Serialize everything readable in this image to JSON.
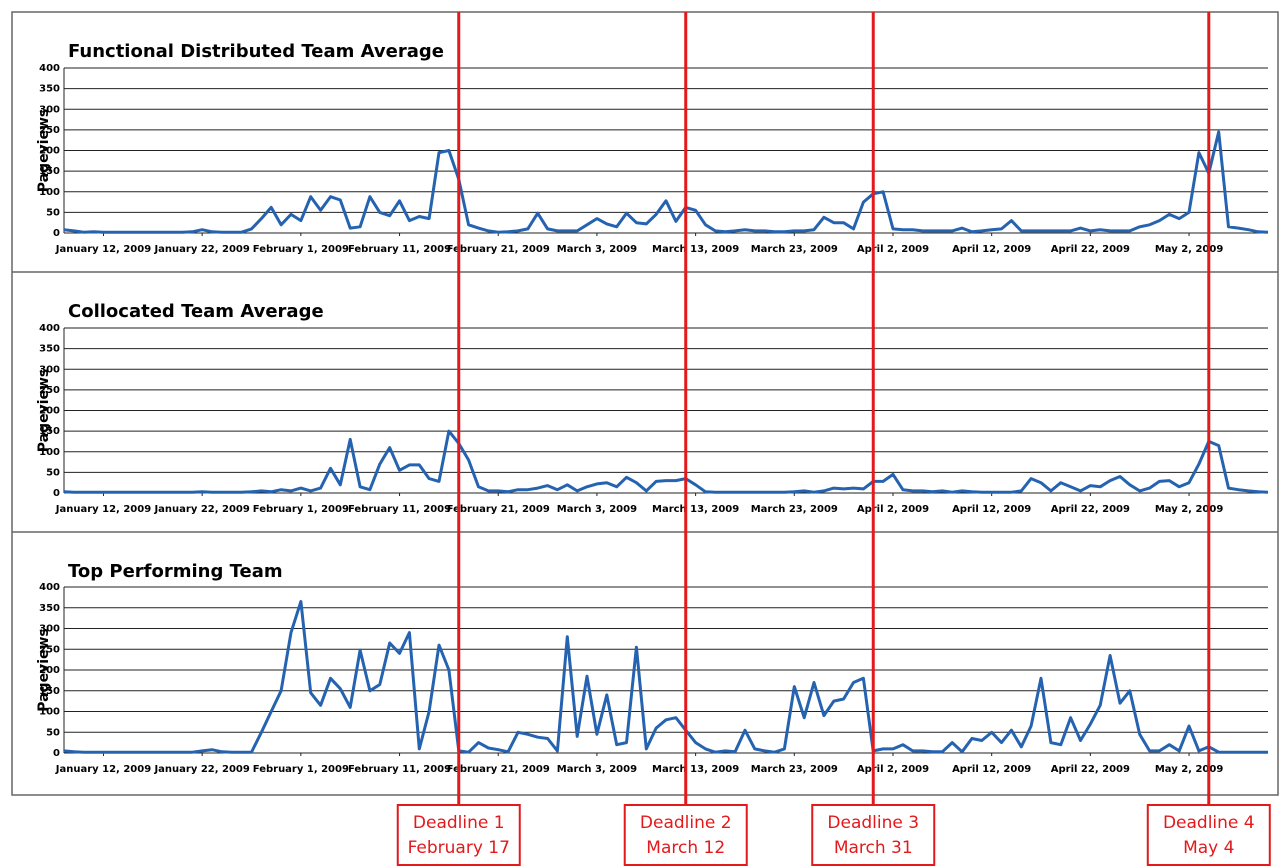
{
  "chart_data": [
    {
      "type": "line",
      "title": "Functional Distributed Team Average",
      "y_label": "Pageviews",
      "color": "#2563b0",
      "grid": true,
      "ylim": [
        0,
        400
      ],
      "yticks": [
        0,
        50,
        100,
        150,
        200,
        250,
        300,
        350,
        400
      ],
      "xticks": [
        {
          "value": "2009-01-12",
          "label": "January 12, 2009"
        },
        {
          "value": "2009-01-22",
          "label": "January 22, 2009"
        },
        {
          "value": "2009-02-01",
          "label": "February 1, 2009"
        },
        {
          "value": "2009-02-11",
          "label": "February 11, 2009"
        },
        {
          "value": "2009-02-21",
          "label": "February 21, 2009"
        },
        {
          "value": "2009-03-03",
          "label": "March 3, 2009"
        },
        {
          "value": "2009-03-13",
          "label": "March 13, 2009"
        },
        {
          "value": "2009-03-23",
          "label": "March 23, 2009"
        },
        {
          "value": "2009-04-02",
          "label": "April 2, 2009"
        },
        {
          "value": "2009-04-12",
          "label": "April 12, 2009"
        },
        {
          "value": "2009-04-22",
          "label": "April 22, 2009"
        },
        {
          "value": "2009-05-02",
          "label": "May 2, 2009"
        }
      ],
      "x": [
        "2009-01-08",
        "2009-01-09",
        "2009-01-10",
        "2009-01-11",
        "2009-01-12",
        "2009-01-13",
        "2009-01-14",
        "2009-01-15",
        "2009-01-16",
        "2009-01-17",
        "2009-01-18",
        "2009-01-19",
        "2009-01-20",
        "2009-01-21",
        "2009-01-22",
        "2009-01-23",
        "2009-01-24",
        "2009-01-25",
        "2009-01-26",
        "2009-01-27",
        "2009-01-28",
        "2009-01-29",
        "2009-01-30",
        "2009-01-31",
        "2009-02-01",
        "2009-02-02",
        "2009-02-03",
        "2009-02-04",
        "2009-02-05",
        "2009-02-06",
        "2009-02-07",
        "2009-02-08",
        "2009-02-09",
        "2009-02-10",
        "2009-02-11",
        "2009-02-12",
        "2009-02-13",
        "2009-02-14",
        "2009-02-15",
        "2009-02-16",
        "2009-02-17",
        "2009-02-18",
        "2009-02-19",
        "2009-02-20",
        "2009-02-21",
        "2009-02-22",
        "2009-02-23",
        "2009-02-24",
        "2009-02-25",
        "2009-02-26",
        "2009-02-27",
        "2009-02-28",
        "2009-03-01",
        "2009-03-02",
        "2009-03-03",
        "2009-03-04",
        "2009-03-05",
        "2009-03-06",
        "2009-03-07",
        "2009-03-08",
        "2009-03-09",
        "2009-03-10",
        "2009-03-11",
        "2009-03-12",
        "2009-03-13",
        "2009-03-14",
        "2009-03-15",
        "2009-03-16",
        "2009-03-17",
        "2009-03-18",
        "2009-03-19",
        "2009-03-20",
        "2009-03-21",
        "2009-03-22",
        "2009-03-23",
        "2009-03-24",
        "2009-03-25",
        "2009-03-26",
        "2009-03-27",
        "2009-03-28",
        "2009-03-29",
        "2009-03-30",
        "2009-03-31",
        "2009-04-01",
        "2009-04-02",
        "2009-04-03",
        "2009-04-04",
        "2009-04-05",
        "2009-04-06",
        "2009-04-07",
        "2009-04-08",
        "2009-04-09",
        "2009-04-10",
        "2009-04-11",
        "2009-04-12",
        "2009-04-13",
        "2009-04-14",
        "2009-04-15",
        "2009-04-16",
        "2009-04-17",
        "2009-04-18",
        "2009-04-19",
        "2009-04-20",
        "2009-04-21",
        "2009-04-22",
        "2009-04-23",
        "2009-04-24",
        "2009-04-25",
        "2009-04-26",
        "2009-04-27",
        "2009-04-28",
        "2009-04-29",
        "2009-04-30",
        "2009-05-01",
        "2009-05-02",
        "2009-05-03",
        "2009-05-04",
        "2009-05-05",
        "2009-05-06",
        "2009-05-07",
        "2009-05-08",
        "2009-05-09",
        "2009-05-10"
      ],
      "values": [
        8,
        5,
        2,
        3,
        2,
        2,
        2,
        2,
        2,
        2,
        2,
        2,
        2,
        3,
        8,
        3,
        2,
        2,
        2,
        10,
        35,
        62,
        20,
        45,
        30,
        88,
        55,
        88,
        80,
        12,
        15,
        88,
        50,
        42,
        78,
        30,
        40,
        35,
        195,
        200,
        130,
        20,
        12,
        5,
        2,
        3,
        5,
        10,
        48,
        10,
        5,
        5,
        5,
        20,
        35,
        22,
        15,
        48,
        25,
        22,
        45,
        78,
        28,
        62,
        55,
        20,
        5,
        3,
        5,
        8,
        5,
        5,
        3,
        3,
        5,
        5,
        8,
        38,
        25,
        25,
        10,
        75,
        95,
        100,
        10,
        8,
        8,
        5,
        5,
        5,
        5,
        12,
        3,
        5,
        8,
        10,
        30,
        5,
        5,
        5,
        5,
        5,
        5,
        12,
        5,
        8,
        5,
        5,
        5,
        15,
        20,
        30,
        45,
        35,
        50,
        195,
        145,
        245,
        15,
        12,
        8,
        3,
        2
      ]
    },
    {
      "type": "line",
      "title": "Collocated Team Average",
      "y_label": "Pageviews",
      "color": "#2563b0",
      "grid": true,
      "ylim": [
        0,
        400
      ],
      "yticks": [
        0,
        50,
        100,
        150,
        200,
        250,
        300,
        350,
        400
      ],
      "xticks": [
        {
          "value": "2009-01-12",
          "label": "January 12, 2009"
        },
        {
          "value": "2009-01-22",
          "label": "January 22, 2009"
        },
        {
          "value": "2009-02-01",
          "label": "February 1, 2009"
        },
        {
          "value": "2009-02-11",
          "label": "February 11, 2009"
        },
        {
          "value": "2009-02-21",
          "label": "February 21, 2009"
        },
        {
          "value": "2009-03-03",
          "label": "March 3, 2009"
        },
        {
          "value": "2009-03-13",
          "label": "March 13, 2009"
        },
        {
          "value": "2009-03-23",
          "label": "March 23, 2009"
        },
        {
          "value": "2009-04-02",
          "label": "April 2, 2009"
        },
        {
          "value": "2009-04-12",
          "label": "April 12, 2009"
        },
        {
          "value": "2009-04-22",
          "label": "April 22, 2009"
        },
        {
          "value": "2009-05-02",
          "label": "May 2, 2009"
        }
      ],
      "x": [
        "2009-01-08",
        "2009-01-09",
        "2009-01-10",
        "2009-01-11",
        "2009-01-12",
        "2009-01-13",
        "2009-01-14",
        "2009-01-15",
        "2009-01-16",
        "2009-01-17",
        "2009-01-18",
        "2009-01-19",
        "2009-01-20",
        "2009-01-21",
        "2009-01-22",
        "2009-01-23",
        "2009-01-24",
        "2009-01-25",
        "2009-01-26",
        "2009-01-27",
        "2009-01-28",
        "2009-01-29",
        "2009-01-30",
        "2009-01-31",
        "2009-02-01",
        "2009-02-02",
        "2009-02-03",
        "2009-02-04",
        "2009-02-05",
        "2009-02-06",
        "2009-02-07",
        "2009-02-08",
        "2009-02-09",
        "2009-02-10",
        "2009-02-11",
        "2009-02-12",
        "2009-02-13",
        "2009-02-14",
        "2009-02-15",
        "2009-02-16",
        "2009-02-17",
        "2009-02-18",
        "2009-02-19",
        "2009-02-20",
        "2009-02-21",
        "2009-02-22",
        "2009-02-23",
        "2009-02-24",
        "2009-02-25",
        "2009-02-26",
        "2009-02-27",
        "2009-02-28",
        "2009-03-01",
        "2009-03-02",
        "2009-03-03",
        "2009-03-04",
        "2009-03-05",
        "2009-03-06",
        "2009-03-07",
        "2009-03-08",
        "2009-03-09",
        "2009-03-10",
        "2009-03-11",
        "2009-03-12",
        "2009-03-13",
        "2009-03-14",
        "2009-03-15",
        "2009-03-16",
        "2009-03-17",
        "2009-03-18",
        "2009-03-19",
        "2009-03-20",
        "2009-03-21",
        "2009-03-22",
        "2009-03-23",
        "2009-03-24",
        "2009-03-25",
        "2009-03-26",
        "2009-03-27",
        "2009-03-28",
        "2009-03-29",
        "2009-03-30",
        "2009-03-31",
        "2009-04-01",
        "2009-04-02",
        "2009-04-03",
        "2009-04-04",
        "2009-04-05",
        "2009-04-06",
        "2009-04-07",
        "2009-04-08",
        "2009-04-09",
        "2009-04-10",
        "2009-04-11",
        "2009-04-12",
        "2009-04-13",
        "2009-04-14",
        "2009-04-15",
        "2009-04-16",
        "2009-04-17",
        "2009-04-18",
        "2009-04-19",
        "2009-04-20",
        "2009-04-21",
        "2009-04-22",
        "2009-04-23",
        "2009-04-24",
        "2009-04-25",
        "2009-04-26",
        "2009-04-27",
        "2009-04-28",
        "2009-04-29",
        "2009-04-30",
        "2009-05-01",
        "2009-05-02",
        "2009-05-03",
        "2009-05-04",
        "2009-05-05",
        "2009-05-06",
        "2009-05-07",
        "2009-05-08",
        "2009-05-09",
        "2009-05-10"
      ],
      "values": [
        3,
        2,
        2,
        2,
        2,
        2,
        2,
        2,
        2,
        2,
        2,
        2,
        2,
        2,
        3,
        2,
        2,
        2,
        2,
        3,
        5,
        3,
        8,
        5,
        12,
        5,
        12,
        60,
        20,
        130,
        15,
        8,
        70,
        110,
        55,
        68,
        68,
        35,
        28,
        150,
        120,
        80,
        15,
        5,
        5,
        3,
        8,
        8,
        12,
        18,
        8,
        20,
        5,
        15,
        22,
        25,
        15,
        38,
        25,
        5,
        28,
        30,
        30,
        35,
        20,
        3,
        2,
        2,
        2,
        2,
        2,
        2,
        2,
        2,
        3,
        5,
        2,
        5,
        12,
        10,
        12,
        10,
        28,
        28,
        45,
        8,
        5,
        5,
        3,
        5,
        2,
        5,
        3,
        2,
        2,
        2,
        2,
        5,
        35,
        25,
        5,
        25,
        15,
        5,
        18,
        15,
        30,
        40,
        20,
        5,
        12,
        28,
        30,
        15,
        25,
        70,
        125,
        115,
        12,
        8,
        5,
        3,
        2
      ]
    },
    {
      "type": "line",
      "title": "Top Performing Team",
      "y_label": "Pageviews",
      "color": "#2563b0",
      "grid": true,
      "ylim": [
        0,
        400
      ],
      "yticks": [
        0,
        50,
        100,
        150,
        200,
        250,
        300,
        350,
        400
      ],
      "xticks": [
        {
          "value": "2009-01-12",
          "label": "January 12, 2009"
        },
        {
          "value": "2009-01-22",
          "label": "January 22, 2009"
        },
        {
          "value": "2009-02-01",
          "label": "February 1, 2009"
        },
        {
          "value": "2009-02-11",
          "label": "February 11, 2009"
        },
        {
          "value": "2009-02-21",
          "label": "February 21, 2009"
        },
        {
          "value": "2009-03-03",
          "label": "March 3, 2009"
        },
        {
          "value": "2009-03-13",
          "label": "March 13, 2009"
        },
        {
          "value": "2009-03-23",
          "label": "March 23, 2009"
        },
        {
          "value": "2009-04-02",
          "label": "April 2, 2009"
        },
        {
          "value": "2009-04-12",
          "label": "April 12, 2009"
        },
        {
          "value": "2009-04-22",
          "label": "April 22, 2009"
        },
        {
          "value": "2009-05-02",
          "label": "May 2, 2009"
        }
      ],
      "x": [
        "2009-01-08",
        "2009-01-09",
        "2009-01-10",
        "2009-01-11",
        "2009-01-12",
        "2009-01-13",
        "2009-01-14",
        "2009-01-15",
        "2009-01-16",
        "2009-01-17",
        "2009-01-18",
        "2009-01-19",
        "2009-01-20",
        "2009-01-21",
        "2009-01-22",
        "2009-01-23",
        "2009-01-24",
        "2009-01-25",
        "2009-01-26",
        "2009-01-27",
        "2009-01-28",
        "2009-01-29",
        "2009-01-30",
        "2009-01-31",
        "2009-02-01",
        "2009-02-02",
        "2009-02-03",
        "2009-02-04",
        "2009-02-05",
        "2009-02-06",
        "2009-02-07",
        "2009-02-08",
        "2009-02-09",
        "2009-02-10",
        "2009-02-11",
        "2009-02-12",
        "2009-02-13",
        "2009-02-14",
        "2009-02-15",
        "2009-02-16",
        "2009-02-17",
        "2009-02-18",
        "2009-02-19",
        "2009-02-20",
        "2009-02-21",
        "2009-02-22",
        "2009-02-23",
        "2009-02-24",
        "2009-02-25",
        "2009-02-26",
        "2009-02-27",
        "2009-02-28",
        "2009-03-01",
        "2009-03-02",
        "2009-03-03",
        "2009-03-04",
        "2009-03-05",
        "2009-03-06",
        "2009-03-07",
        "2009-03-08",
        "2009-03-09",
        "2009-03-10",
        "2009-03-11",
        "2009-03-12",
        "2009-03-13",
        "2009-03-14",
        "2009-03-15",
        "2009-03-16",
        "2009-03-17",
        "2009-03-18",
        "2009-03-19",
        "2009-03-20",
        "2009-03-21",
        "2009-03-22",
        "2009-03-23",
        "2009-03-24",
        "2009-03-25",
        "2009-03-26",
        "2009-03-27",
        "2009-03-28",
        "2009-03-29",
        "2009-03-30",
        "2009-03-31",
        "2009-04-01",
        "2009-04-02",
        "2009-04-03",
        "2009-04-04",
        "2009-04-05",
        "2009-04-06",
        "2009-04-07",
        "2009-04-08",
        "2009-04-09",
        "2009-04-10",
        "2009-04-11",
        "2009-04-12",
        "2009-04-13",
        "2009-04-14",
        "2009-04-15",
        "2009-04-16",
        "2009-04-17",
        "2009-04-18",
        "2009-04-19",
        "2009-04-20",
        "2009-04-21",
        "2009-04-22",
        "2009-04-23",
        "2009-04-24",
        "2009-04-25",
        "2009-04-26",
        "2009-04-27",
        "2009-04-28",
        "2009-04-29",
        "2009-04-30",
        "2009-05-01",
        "2009-05-02",
        "2009-05-03",
        "2009-05-04",
        "2009-05-05",
        "2009-05-06",
        "2009-05-07",
        "2009-05-08",
        "2009-05-09",
        "2009-05-10"
      ],
      "values": [
        5,
        3,
        2,
        2,
        2,
        2,
        2,
        2,
        2,
        2,
        2,
        2,
        2,
        2,
        5,
        8,
        3,
        2,
        2,
        2,
        50,
        100,
        150,
        290,
        365,
        145,
        115,
        180,
        155,
        110,
        248,
        150,
        165,
        265,
        240,
        290,
        10,
        100,
        260,
        200,
        5,
        2,
        25,
        12,
        8,
        3,
        50,
        45,
        38,
        35,
        5,
        280,
        40,
        185,
        45,
        140,
        20,
        25,
        255,
        10,
        60,
        80,
        85,
        55,
        25,
        10,
        2,
        5,
        3,
        55,
        10,
        5,
        2,
        10,
        160,
        85,
        170,
        90,
        125,
        130,
        170,
        180,
        5,
        10,
        10,
        20,
        5,
        5,
        3,
        3,
        25,
        3,
        35,
        30,
        50,
        25,
        55,
        15,
        65,
        180,
        25,
        20,
        85,
        30,
        70,
        115,
        235,
        120,
        150,
        45,
        5,
        5,
        20,
        5,
        65,
        5,
        15,
        2,
        2,
        2,
        2,
        2,
        2
      ]
    }
  ],
  "deadlines": [
    {
      "label": "Deadline 1",
      "date": "February 17",
      "x": "2009-02-17"
    },
    {
      "label": "Deadline 2",
      "date": "March 12",
      "x": "2009-03-12"
    },
    {
      "label": "Deadline 3",
      "date": "March 31",
      "x": "2009-03-31"
    },
    {
      "label": "Deadline 4",
      "date": "May 4",
      "x": "2009-05-04"
    }
  ]
}
